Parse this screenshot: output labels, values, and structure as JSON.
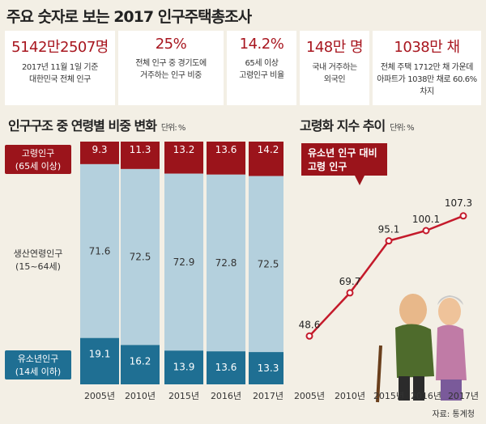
{
  "title": "주요 숫자로 보는 2017 인구주택총조사",
  "stats": [
    {
      "value": "5142만2507명",
      "desc1": "2017년 11월 1일 기준",
      "desc2": "대한민국 전체 인구"
    },
    {
      "value": "25%",
      "desc1": "전체 인구 중 경기도에",
      "desc2": "거주하는 인구 비중"
    },
    {
      "value": "14.2%",
      "desc1": "65세 이상",
      "desc2": "고령인구 비율"
    },
    {
      "value": "148만 명",
      "desc1": "국내 거주하는",
      "desc2": "외국인"
    },
    {
      "value": "1038만 채",
      "desc1": "전체 주택 1712만 채 가운데",
      "desc2": "아파트가 1038만 채로 60.6% 차지"
    }
  ],
  "bar_section": {
    "title": "인구구조 중 연령별 비중 변화",
    "unit": "단위: %"
  },
  "line_section": {
    "title": "고령화 지수 추이",
    "unit": "단위: %"
  },
  "line_annotation": {
    "line1": "유소년 인구 대비",
    "line2": "고령 인구"
  },
  "source": "자료: 통계청",
  "colors": {
    "elderly": "#9b141b",
    "working": "#b4d0dd",
    "youth": "#1f6f93",
    "line": "#c41a2b"
  },
  "chart_data": [
    {
      "type": "bar",
      "stacked": true,
      "title": "인구구조 중 연령별 비중 변화",
      "unit": "단위: %",
      "categories": [
        "2005년",
        "2010년",
        "2015년",
        "2016년",
        "2017년"
      ],
      "series": [
        {
          "name_line1": "고령인구",
          "name_line2": "(65세 이상)",
          "values": [
            9.3,
            11.3,
            13.2,
            13.6,
            14.2
          ],
          "labels": [
            "9.3",
            "11.3",
            "13.2",
            "13.6",
            "14.2"
          ]
        },
        {
          "name_line1": "생산연령인구",
          "name_line2": "(15~64세)",
          "values": [
            71.6,
            72.5,
            72.9,
            72.8,
            72.5
          ],
          "labels": [
            "71.6",
            "72.5",
            "72.9",
            "72.8",
            "72.5"
          ]
        },
        {
          "name_line1": "유소년인구",
          "name_line2": "(14세 이하)",
          "values": [
            19.1,
            16.2,
            13.9,
            13.6,
            13.3
          ],
          "labels": [
            "19.1",
            "16.2",
            "13.9",
            "13.6",
            "13.3"
          ]
        }
      ]
    },
    {
      "type": "line",
      "title": "고령화 지수 추이",
      "unit": "단위: %",
      "x": [
        "2005년",
        "2010년",
        "2015년",
        "2016년",
        "2017년"
      ],
      "values": [
        48.6,
        69.7,
        95.1,
        100.1,
        107.3
      ],
      "labels": [
        "48.6",
        "69.7",
        "95.1",
        "100.1",
        "107.3"
      ]
    }
  ]
}
